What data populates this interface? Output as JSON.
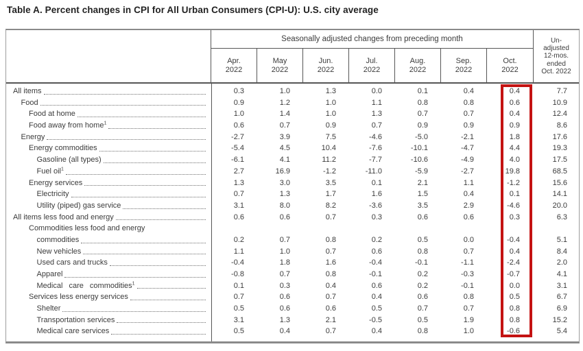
{
  "title": "Table A. Percent changes in CPI for All Urban Consumers (CPI-U): U.S. city average",
  "accent_color": "#c41312",
  "table": {
    "group_header": "Seasonally adjusted changes from preceding month",
    "month_columns": [
      {
        "line1": "Apr.",
        "line2": "2022"
      },
      {
        "line1": "May",
        "line2": "2022"
      },
      {
        "line1": "Jun.",
        "line2": "2022"
      },
      {
        "line1": "Jul.",
        "line2": "2022"
      },
      {
        "line1": "Aug.",
        "line2": "2022"
      },
      {
        "line1": "Sep.",
        "line2": "2022"
      },
      {
        "line1": "Oct.",
        "line2": "2022"
      }
    ],
    "unadjusted_header_lines": [
      "Un-",
      "adjusted",
      "12-mos.",
      "ended",
      "Oct. 2022"
    ],
    "highlighted_column": "Oct. 2022",
    "rows": [
      {
        "label": "All items",
        "indent": 0,
        "values": [
          "0.3",
          "1.0",
          "1.3",
          "0.0",
          "0.1",
          "0.4",
          "0.4"
        ],
        "unadjusted": "7.7"
      },
      {
        "label": "Food",
        "indent": 1,
        "values": [
          "0.9",
          "1.2",
          "1.0",
          "1.1",
          "0.8",
          "0.8",
          "0.6"
        ],
        "unadjusted": "10.9"
      },
      {
        "label": "Food at home",
        "indent": 2,
        "values": [
          "1.0",
          "1.4",
          "1.0",
          "1.3",
          "0.7",
          "0.7",
          "0.4"
        ],
        "unadjusted": "12.4"
      },
      {
        "label": "Food away from home",
        "sup": "1",
        "indent": 2,
        "values": [
          "0.6",
          "0.7",
          "0.9",
          "0.7",
          "0.9",
          "0.9",
          "0.9"
        ],
        "unadjusted": "8.6"
      },
      {
        "label": "Energy",
        "indent": 1,
        "values": [
          "-2.7",
          "3.9",
          "7.5",
          "-4.6",
          "-5.0",
          "-2.1",
          "1.8"
        ],
        "unadjusted": "17.6"
      },
      {
        "label": "Energy commodities",
        "indent": 2,
        "values": [
          "-5.4",
          "4.5",
          "10.4",
          "-7.6",
          "-10.1",
          "-4.7",
          "4.4"
        ],
        "unadjusted": "19.3"
      },
      {
        "label": "Gasoline (all types)",
        "indent": 3,
        "values": [
          "-6.1",
          "4.1",
          "11.2",
          "-7.7",
          "-10.6",
          "-4.9",
          "4.0"
        ],
        "unadjusted": "17.5"
      },
      {
        "label": "Fuel oil",
        "sup": "1",
        "indent": 3,
        "values": [
          "2.7",
          "16.9",
          "-1.2",
          "-11.0",
          "-5.9",
          "-2.7",
          "19.8"
        ],
        "unadjusted": "68.5"
      },
      {
        "label": "Energy services",
        "indent": 2,
        "values": [
          "1.3",
          "3.0",
          "3.5",
          "0.1",
          "2.1",
          "1.1",
          "-1.2"
        ],
        "unadjusted": "15.6"
      },
      {
        "label": "Electricity",
        "indent": 3,
        "values": [
          "0.7",
          "1.3",
          "1.7",
          "1.6",
          "1.5",
          "0.4",
          "0.1"
        ],
        "unadjusted": "14.1"
      },
      {
        "label": "Utility (piped) gas service",
        "indent": 3,
        "values": [
          "3.1",
          "8.0",
          "8.2",
          "-3.6",
          "3.5",
          "2.9",
          "-4.6"
        ],
        "unadjusted": "20.0"
      },
      {
        "label": "All items less food and energy",
        "indent": 0,
        "values": [
          "0.6",
          "0.6",
          "0.7",
          "0.3",
          "0.6",
          "0.6",
          "0.3"
        ],
        "unadjusted": "6.3"
      },
      {
        "label": "Commodities less food and energy",
        "label2": "commodities",
        "indent": 2,
        "values": [
          "0.2",
          "0.7",
          "0.8",
          "0.2",
          "0.5",
          "0.0",
          "-0.4"
        ],
        "unadjusted": "5.1"
      },
      {
        "label": "New vehicles",
        "indent": 3,
        "values": [
          "1.1",
          "1.0",
          "0.7",
          "0.6",
          "0.8",
          "0.7",
          "0.4"
        ],
        "unadjusted": "8.4"
      },
      {
        "label": "Used cars and trucks",
        "indent": 3,
        "values": [
          "-0.4",
          "1.8",
          "1.6",
          "-0.4",
          "-0.1",
          "-1.1",
          "-2.4"
        ],
        "unadjusted": "2.0"
      },
      {
        "label": "Apparel",
        "indent": 3,
        "values": [
          "-0.8",
          "0.7",
          "0.8",
          "-0.1",
          "0.2",
          "-0.3",
          "-0.7"
        ],
        "unadjusted": "4.1"
      },
      {
        "label": "Medical care commodities",
        "sup": "1",
        "wide_spacing": true,
        "indent": 3,
        "values": [
          "0.1",
          "0.3",
          "0.4",
          "0.6",
          "0.2",
          "-0.1",
          "0.0"
        ],
        "unadjusted": "3.1"
      },
      {
        "label": "Services less energy services",
        "indent": 2,
        "values": [
          "0.7",
          "0.6",
          "0.7",
          "0.4",
          "0.6",
          "0.8",
          "0.5"
        ],
        "unadjusted": "6.7"
      },
      {
        "label": "Shelter",
        "indent": 3,
        "values": [
          "0.5",
          "0.6",
          "0.6",
          "0.5",
          "0.7",
          "0.7",
          "0.8"
        ],
        "unadjusted": "6.9"
      },
      {
        "label": "Transportation services",
        "indent": 3,
        "values": [
          "3.1",
          "1.3",
          "2.1",
          "-0.5",
          "0.5",
          "1.9",
          "0.8"
        ],
        "unadjusted": "15.2"
      },
      {
        "label": "Medical care services",
        "indent": 3,
        "values": [
          "0.5",
          "0.4",
          "0.7",
          "0.4",
          "0.8",
          "1.0",
          "-0.6"
        ],
        "unadjusted": "5.4"
      }
    ]
  }
}
